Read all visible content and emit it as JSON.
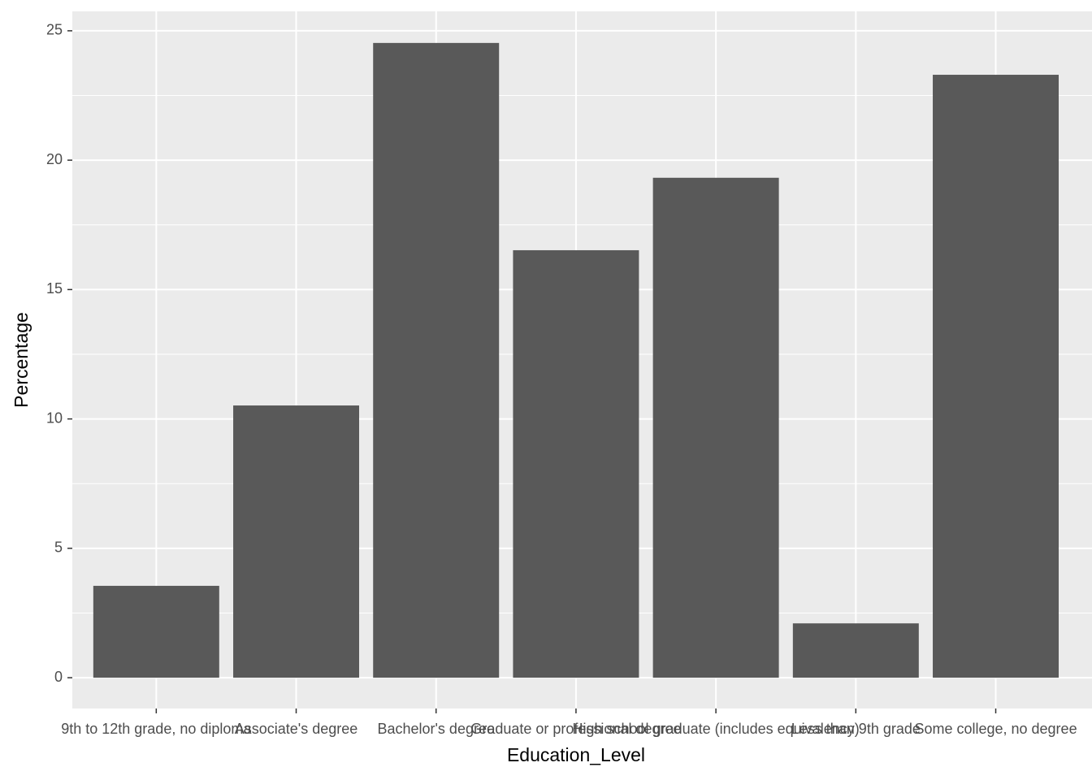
{
  "chart_data": {
    "type": "bar",
    "x_label": "Education_Level",
    "y_label": "Percentage",
    "categories": [
      "9th to 12th grade, no diploma",
      "Associate's degree",
      "Bachelor's degree",
      "Graduate or professional degree",
      "High school graduate (includes equivalency)",
      "Less than 9th grade",
      "Some college, no degree"
    ],
    "values": [
      3.55,
      10.52,
      24.53,
      16.52,
      19.32,
      2.1,
      23.3
    ],
    "color": "#595959",
    "ylim": [
      -1.19,
      25.75
    ],
    "yticks": [
      0,
      5,
      10,
      15,
      20,
      25
    ],
    "grid": true
  }
}
